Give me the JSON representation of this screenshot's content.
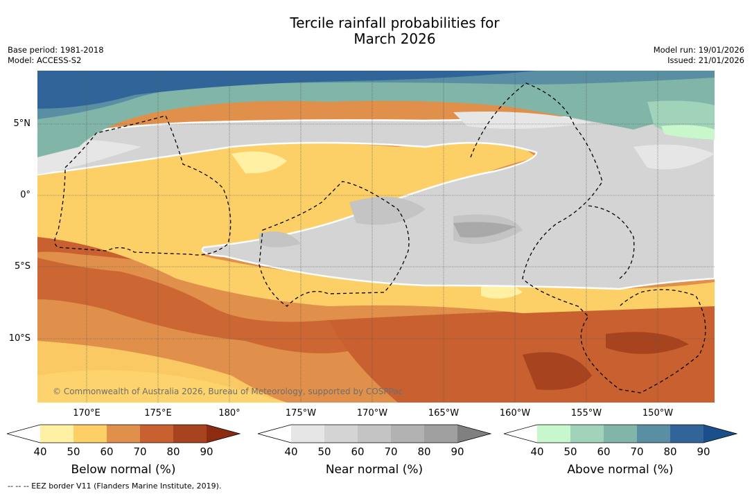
{
  "title": {
    "line1": "Tercile rainfall probabilities for",
    "line2": "March 2026"
  },
  "meta": {
    "base_period": "Base period: 1981-2018",
    "model": "Model: ACCESS-S2",
    "model_run": "Model run: 19/01/2026",
    "issued": "Issued: 21/01/2026"
  },
  "map": {
    "lat_labels": [
      "5°N",
      "0°",
      "5°S",
      "10°S"
    ],
    "lon_labels": [
      "170°E",
      "175°E",
      "180°",
      "175°W",
      "170°W",
      "165°W",
      "160°W",
      "155°W",
      "150°W"
    ],
    "copyright": "© Commonwealth of Australia 2026, Bureau of Meteorology, supported by COSPPac"
  },
  "colorbars": [
    {
      "label": "Below normal (%)",
      "ticks": [
        "40",
        "50",
        "60",
        "70",
        "80",
        "90"
      ],
      "colors": [
        "#ffffff",
        "#fff0a3",
        "#fdcf67",
        "#e0904a",
        "#c8602f",
        "#a8431f",
        "#8c2a12"
      ]
    },
    {
      "label": "Near normal (%)",
      "ticks": [
        "40",
        "50",
        "60",
        "70",
        "80",
        "90"
      ],
      "colors": [
        "#ffffff",
        "#e6e6e6",
        "#d4d4d4",
        "#c4c4c4",
        "#b2b2b2",
        "#a0a0a0",
        "#808080"
      ]
    },
    {
      "label": "Above normal (%)",
      "ticks": [
        "40",
        "50",
        "60",
        "70",
        "80",
        "90"
      ],
      "colors": [
        "#ffffff",
        "#c8f7cb",
        "#a1d3bb",
        "#80b5a8",
        "#5a8fa3",
        "#316599",
        "#1a4f8c"
      ]
    }
  ],
  "footnote": "--  --  -- EEZ border V11 (Flanders Marine Institute, 2019)."
}
